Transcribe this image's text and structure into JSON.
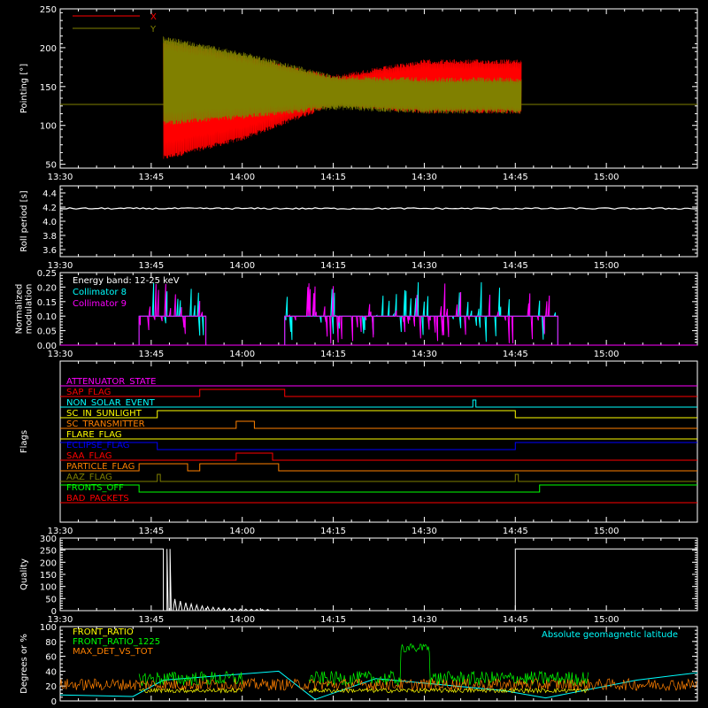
{
  "colors": {
    "background": "#000000",
    "axes": "#ffffff",
    "x": "#ff0000",
    "y": "#808000",
    "coll8": "#00ffff",
    "coll9": "#ff00ff",
    "front_ratio": "#ffff00",
    "front_ratio_1225": "#00ff00",
    "max_det": "#ff8000",
    "geomag": "#00ffff"
  },
  "time_ticks": [
    "13:30",
    "13:45",
    "14:00",
    "14:15",
    "14:30",
    "14:45",
    "15:00"
  ],
  "chart_data": [
    {
      "type": "line",
      "ylabel": "Pointing [°]",
      "ylim": [
        45,
        250
      ],
      "yticks": [
        "50",
        "100",
        "150",
        "200",
        "250"
      ],
      "legend": [
        "X",
        "Y"
      ],
      "series": [
        {
          "name": "X",
          "envelope_x": [
            "13:47",
            "14:00",
            "14:15",
            "14:30",
            "14:46"
          ],
          "max": [
            210,
            190,
            165,
            185,
            185
          ],
          "min": [
            55,
            80,
            125,
            115,
            115
          ]
        },
        {
          "name": "Y",
          "envelope_x": [
            "13:47",
            "14:00",
            "14:15",
            "14:30",
            "14:46"
          ],
          "max": [
            215,
            195,
            165,
            162,
            162
          ],
          "min": [
            100,
            108,
            120,
            115,
            115
          ]
        }
      ],
      "baseline": 127,
      "active_range": [
        "13:47",
        "14:46"
      ]
    },
    {
      "type": "line",
      "ylabel": "Roll period [s]",
      "ylim": [
        3.5,
        4.5
      ],
      "yticks": [
        "3.6",
        "3.8",
        "4.0",
        "4.2",
        "4.4"
      ],
      "series": [
        {
          "name": "",
          "value": 4.18
        }
      ]
    },
    {
      "type": "bar",
      "ylabel": "Normalized modulation",
      "ylim": [
        0,
        0.25
      ],
      "yticks": [
        "0.00",
        "0.05",
        "0.10",
        "0.15",
        "0.20",
        "0.25"
      ],
      "legend": [
        "Energy band: 12-25 keV",
        "Collimator 8",
        "Collimator 9"
      ],
      "segments": [
        [
          "13:43",
          "13:54"
        ],
        [
          "14:07",
          "14:52"
        ]
      ],
      "typical": 0.1
    },
    {
      "type": "line",
      "ylabel": "Flags",
      "flags": [
        {
          "name": "ATTENUATOR_STATE",
          "color": "#ff00ff",
          "high": []
        },
        {
          "name": "SAP_FLAG",
          "color": "#ff0000",
          "high": [
            [
              "13:53",
              "14:07"
            ]
          ]
        },
        {
          "name": "NON_SOLAR_EVENT",
          "color": "#00ffff",
          "high": [
            [
              "14:38",
              "14:38.5"
            ]
          ]
        },
        {
          "name": "SC_IN_SUNLIGHT",
          "color": "#ffff00",
          "high": [
            [
              "13:46",
              "14:45"
            ]
          ]
        },
        {
          "name": "SC_TRANSMITTER",
          "color": "#ff8000",
          "high": [
            [
              "13:59",
              "14:02"
            ]
          ]
        },
        {
          "name": "FLARE_FLAG",
          "color": "#ffff00",
          "high": []
        },
        {
          "name": "ECLIPSE_FLAG",
          "color": "#0000ff",
          "high": [
            [
              "13:30",
              "13:46"
            ],
            [
              "14:45",
              "15:15"
            ]
          ]
        },
        {
          "name": "SAA_FLAG",
          "color": "#ff0000",
          "high": [
            [
              "13:59",
              "14:05"
            ]
          ]
        },
        {
          "name": "PARTICLE_FLAG",
          "color": "#ff8000",
          "high": [
            [
              "13:43",
              "13:51"
            ],
            [
              "13:53",
              "14:06"
            ]
          ]
        },
        {
          "name": "AAZ_FLAG",
          "color": "#808000",
          "high": [
            [
              "13:46",
              "13:46.5"
            ],
            [
              "14:45",
              "14:45.5"
            ]
          ]
        },
        {
          "name": "FRONTS_OFF",
          "color": "#00ff00",
          "high": [
            [
              "13:30",
              "13:43"
            ],
            [
              "14:49",
              "15:15"
            ]
          ]
        },
        {
          "name": "BAD_PACKETS",
          "color": "#ff0000",
          "high": []
        }
      ]
    },
    {
      "type": "line",
      "ylabel": "Quality",
      "ylim": [
        0,
        300
      ],
      "yticks": [
        "0",
        "50",
        "100",
        "150",
        "200",
        "250",
        "300"
      ],
      "series": [
        {
          "name": "",
          "high_value": 255,
          "high_ranges": [
            [
              "13:30",
              "13:47"
            ],
            [
              "14:45",
              "15:15"
            ]
          ],
          "spike_at": "13:47"
        }
      ]
    },
    {
      "type": "line",
      "ylabel": "Degrees or %",
      "ylim": [
        0,
        100
      ],
      "yticks": [
        "0",
        "20",
        "40",
        "60",
        "80",
        "100"
      ],
      "legend": [
        "FRONT_RATIO",
        "FRONT_RATIO_1225",
        "MAX_DET_VS_TOT"
      ],
      "annotation": "Absolute geomagnetic latitude"
    }
  ]
}
